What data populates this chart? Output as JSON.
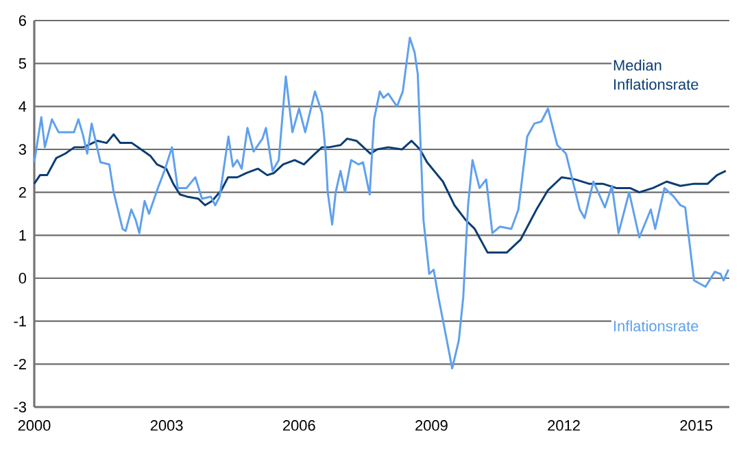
{
  "chart_data": {
    "type": "line",
    "xlim": [
      2000,
      2015.75
    ],
    "xticks": [
      2000,
      2003,
      2006,
      2009,
      2012,
      2015
    ],
    "ylim": [
      -3,
      6
    ],
    "yticks": [
      -3,
      -2,
      -1,
      0,
      1,
      2,
      3,
      4,
      5,
      6
    ],
    "grid": "y",
    "legend": false,
    "marker": "none",
    "line_style": "solid",
    "series": [
      {
        "name": "Median Inflationsrate",
        "color": "#0b3d73",
        "x": [
          2000.0,
          2000.13,
          2000.29,
          2000.5,
          2000.7,
          2000.91,
          2001.12,
          2001.43,
          2001.64,
          2001.8,
          2001.95,
          2002.21,
          2002.42,
          2002.63,
          2002.78,
          2002.99,
          2003.15,
          2003.3,
          2003.46,
          2003.72,
          2003.87,
          2004.03,
          2004.24,
          2004.39,
          2004.6,
          2004.81,
          2005.07,
          2005.28,
          2005.43,
          2005.64,
          2005.9,
          2006.11,
          2006.31,
          2006.52,
          2006.68,
          2006.94,
          2007.09,
          2007.3,
          2007.46,
          2007.62,
          2007.77,
          2008.02,
          2008.33,
          2008.55,
          2008.74,
          2008.9,
          2009.26,
          2009.52,
          2009.78,
          2009.98,
          2010.27,
          2010.55,
          2010.71,
          2011.02,
          2011.38,
          2011.64,
          2011.95,
          2012.26,
          2012.57,
          2012.88,
          2013.19,
          2013.5,
          2013.71,
          2014.02,
          2014.33,
          2014.64,
          2014.95,
          2015.26,
          2015.47,
          2015.67
        ],
        "values": [
          2.2,
          2.4,
          2.4,
          2.8,
          2.9,
          3.05,
          3.05,
          3.2,
          3.15,
          3.35,
          3.15,
          3.15,
          3.0,
          2.85,
          2.65,
          2.55,
          2.2,
          1.95,
          1.9,
          1.85,
          1.7,
          1.8,
          2.05,
          2.35,
          2.35,
          2.45,
          2.55,
          2.4,
          2.45,
          2.65,
          2.75,
          2.65,
          2.85,
          3.05,
          3.05,
          3.1,
          3.25,
          3.2,
          3.05,
          2.9,
          3.0,
          3.05,
          3.0,
          3.2,
          3.0,
          2.7,
          2.25,
          1.7,
          1.35,
          1.15,
          0.6,
          0.6,
          0.6,
          0.9,
          1.6,
          2.05,
          2.35,
          2.3,
          2.2,
          2.2,
          2.1,
          2.1,
          2.0,
          2.1,
          2.25,
          2.15,
          2.2,
          2.2,
          2.4,
          2.5
        ]
      },
      {
        "name": "Inflationsrate",
        "color": "#5fa0ee",
        "x": [
          2000.0,
          2000.16,
          2000.24,
          2000.4,
          2000.55,
          2000.9,
          2001.0,
          2001.1,
          2001.2,
          2001.3,
          2001.5,
          2001.7,
          2001.8,
          2002.0,
          2002.07,
          2002.2,
          2002.3,
          2002.38,
          2002.5,
          2002.6,
          2002.8,
          2002.95,
          2003.12,
          2003.25,
          2003.45,
          2003.65,
          2003.8,
          2004.0,
          2004.1,
          2004.2,
          2004.4,
          2004.5,
          2004.6,
          2004.7,
          2004.83,
          2004.97,
          2005.17,
          2005.25,
          2005.4,
          2005.54,
          2005.7,
          2005.85,
          2006.0,
          2006.14,
          2006.36,
          2006.52,
          2006.6,
          2006.65,
          2006.75,
          2006.83,
          2006.94,
          2007.04,
          2007.18,
          2007.35,
          2007.45,
          2007.6,
          2007.7,
          2007.83,
          2007.91,
          2008.02,
          2008.22,
          2008.35,
          2008.51,
          2008.62,
          2008.69,
          2008.76,
          2008.82,
          2008.95,
          2009.05,
          2009.16,
          2009.34,
          2009.47,
          2009.62,
          2009.72,
          2009.83,
          2009.93,
          2010.09,
          2010.24,
          2010.38,
          2010.55,
          2010.81,
          2010.97,
          2011.17,
          2011.33,
          2011.49,
          2011.64,
          2011.85,
          2012.05,
          2012.36,
          2012.47,
          2012.67,
          2012.93,
          2013.09,
          2013.24,
          2013.48,
          2013.71,
          2013.97,
          2014.07,
          2014.28,
          2014.49,
          2014.64,
          2014.75,
          2014.95,
          2015.21,
          2015.42,
          2015.55,
          2015.62,
          2015.73
        ],
        "values": [
          2.7,
          3.75,
          3.05,
          3.7,
          3.4,
          3.4,
          3.7,
          3.35,
          2.9,
          3.6,
          2.7,
          2.65,
          2.0,
          1.15,
          1.1,
          1.6,
          1.35,
          1.05,
          1.8,
          1.5,
          2.1,
          2.5,
          3.05,
          2.1,
          2.1,
          2.35,
          1.85,
          1.9,
          1.7,
          1.9,
          3.3,
          2.6,
          2.75,
          2.55,
          3.5,
          2.95,
          3.25,
          3.5,
          2.5,
          2.75,
          4.7,
          3.4,
          3.95,
          3.4,
          4.35,
          3.85,
          2.95,
          2.0,
          1.25,
          2.0,
          2.5,
          2.0,
          2.75,
          2.65,
          2.7,
          1.95,
          3.7,
          4.35,
          4.2,
          4.3,
          4.0,
          4.35,
          5.6,
          5.25,
          4.75,
          2.95,
          1.35,
          0.1,
          0.2,
          -0.45,
          -1.4,
          -2.1,
          -1.45,
          -0.45,
          1.7,
          2.75,
          2.1,
          2.3,
          1.05,
          1.2,
          1.15,
          1.6,
          3.3,
          3.6,
          3.65,
          3.95,
          3.1,
          2.9,
          1.6,
          1.4,
          2.25,
          1.65,
          2.15,
          1.05,
          2.0,
          0.95,
          1.6,
          1.15,
          2.1,
          1.9,
          1.7,
          1.65,
          -0.05,
          -0.2,
          0.15,
          0.1,
          -0.05,
          0.2
        ]
      }
    ]
  }
}
